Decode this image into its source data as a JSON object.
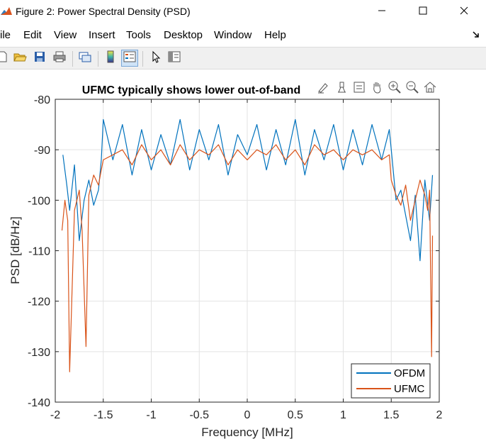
{
  "window": {
    "title": "Figure 2: Power Spectral Density (PSD)",
    "icon": "matlab-figure-icon",
    "controls": [
      "minimize-icon",
      "maximize-icon",
      "close-icon"
    ]
  },
  "menu": [
    "ile",
    "Edit",
    "View",
    "Insert",
    "Tools",
    "Desktop",
    "Window",
    "Help"
  ],
  "toolbar": {
    "buttons": [
      "new-figure-icon",
      "open-file-icon",
      "save-icon",
      "print-icon",
      "link-plot-icon",
      "colorbar-icon",
      "legend-icon",
      "select-pointer-icon",
      "property-inspector-icon"
    ],
    "active": "legend-icon"
  },
  "axes_toolbar": [
    "brush-icon",
    "data-cursor-icon",
    "data-tips-icon",
    "pan-icon",
    "zoom-in-icon",
    "zoom-out-icon",
    "home-icon"
  ],
  "colors": {
    "ofdm": "#0072BD",
    "ufmc": "#D95319"
  },
  "chart_data": {
    "type": "line",
    "title": "UFMC typically shows lower out-of-band",
    "xlabel": "Frequency [MHz]",
    "ylabel": "PSD [dB/Hz]",
    "xlim": [
      -2,
      2
    ],
    "ylim": [
      -140,
      -80
    ],
    "xticks": [
      -2,
      -1.5,
      -1,
      -0.5,
      0,
      0.5,
      1,
      1.5,
      2
    ],
    "xtick_labels": [
      "-2",
      "-1.5",
      "-1",
      "-0.5",
      "0",
      "0.5",
      "1",
      "1.5",
      "2"
    ],
    "yticks": [
      -140,
      -130,
      -120,
      -110,
      -100,
      -90,
      -80
    ],
    "ytick_labels": [
      "-140",
      "-130",
      "-120",
      "-110",
      "-100",
      "-90",
      "-80"
    ],
    "grid": true,
    "legend_position": "bottom-right",
    "series": [
      {
        "name": "OFDM",
        "color": "#0072BD",
        "x": [
          -1.92,
          -1.88,
          -1.85,
          -1.8,
          -1.75,
          -1.7,
          -1.65,
          -1.6,
          -1.55,
          -1.52,
          -1.5,
          -1.4,
          -1.3,
          -1.2,
          -1.1,
          -1.0,
          -0.9,
          -0.8,
          -0.7,
          -0.6,
          -0.5,
          -0.4,
          -0.3,
          -0.2,
          -0.1,
          0.0,
          0.1,
          0.2,
          0.3,
          0.4,
          0.5,
          0.6,
          0.7,
          0.8,
          0.9,
          1.0,
          1.1,
          1.2,
          1.3,
          1.4,
          1.48,
          1.5,
          1.55,
          1.6,
          1.65,
          1.7,
          1.75,
          1.8,
          1.85,
          1.9,
          1.93
        ],
        "y": [
          -91,
          -97,
          -102,
          -93,
          -108,
          -100,
          -96,
          -101,
          -98,
          -92,
          -84,
          -92,
          -85,
          -95,
          -86,
          -94,
          -87,
          -93,
          -84,
          -94,
          -86,
          -92,
          -85,
          -95,
          -87,
          -91,
          -85,
          -94,
          -86,
          -93,
          -84,
          -95,
          -86,
          -92,
          -85,
          -94,
          -86,
          -93,
          -85,
          -92,
          -86,
          -90,
          -100,
          -98,
          -103,
          -108,
          -99,
          -112,
          -96,
          -104,
          -95
        ]
      },
      {
        "name": "UFMC",
        "color": "#D95319",
        "x": [
          -1.93,
          -1.9,
          -1.87,
          -1.85,
          -1.8,
          -1.75,
          -1.72,
          -1.68,
          -1.65,
          -1.6,
          -1.55,
          -1.52,
          -1.5,
          -1.4,
          -1.3,
          -1.2,
          -1.1,
          -1.0,
          -0.9,
          -0.8,
          -0.7,
          -0.6,
          -0.5,
          -0.4,
          -0.3,
          -0.2,
          -0.1,
          0.0,
          0.1,
          0.2,
          0.3,
          0.4,
          0.5,
          0.6,
          0.7,
          0.8,
          0.9,
          1.0,
          1.1,
          1.2,
          1.3,
          1.4,
          1.48,
          1.5,
          1.55,
          1.6,
          1.65,
          1.7,
          1.75,
          1.8,
          1.85,
          1.88,
          1.9,
          1.92,
          1.93
        ],
        "y": [
          -106,
          -100,
          -104,
          -134,
          -102,
          -98,
          -106,
          -129,
          -99,
          -95,
          -97,
          -94,
          -92,
          -91,
          -90,
          -93,
          -89,
          -92,
          -90,
          -93,
          -89,
          -92,
          -90,
          -91,
          -89,
          -93,
          -90,
          -92,
          -90,
          -91,
          -89,
          -92,
          -90,
          -93,
          -89,
          -91,
          -90,
          -92,
          -90,
          -91,
          -90,
          -92,
          -91,
          -96,
          -99,
          -101,
          -97,
          -104,
          -100,
          -96,
          -99,
          -102,
          -98,
          -131,
          -107
        ]
      }
    ]
  }
}
